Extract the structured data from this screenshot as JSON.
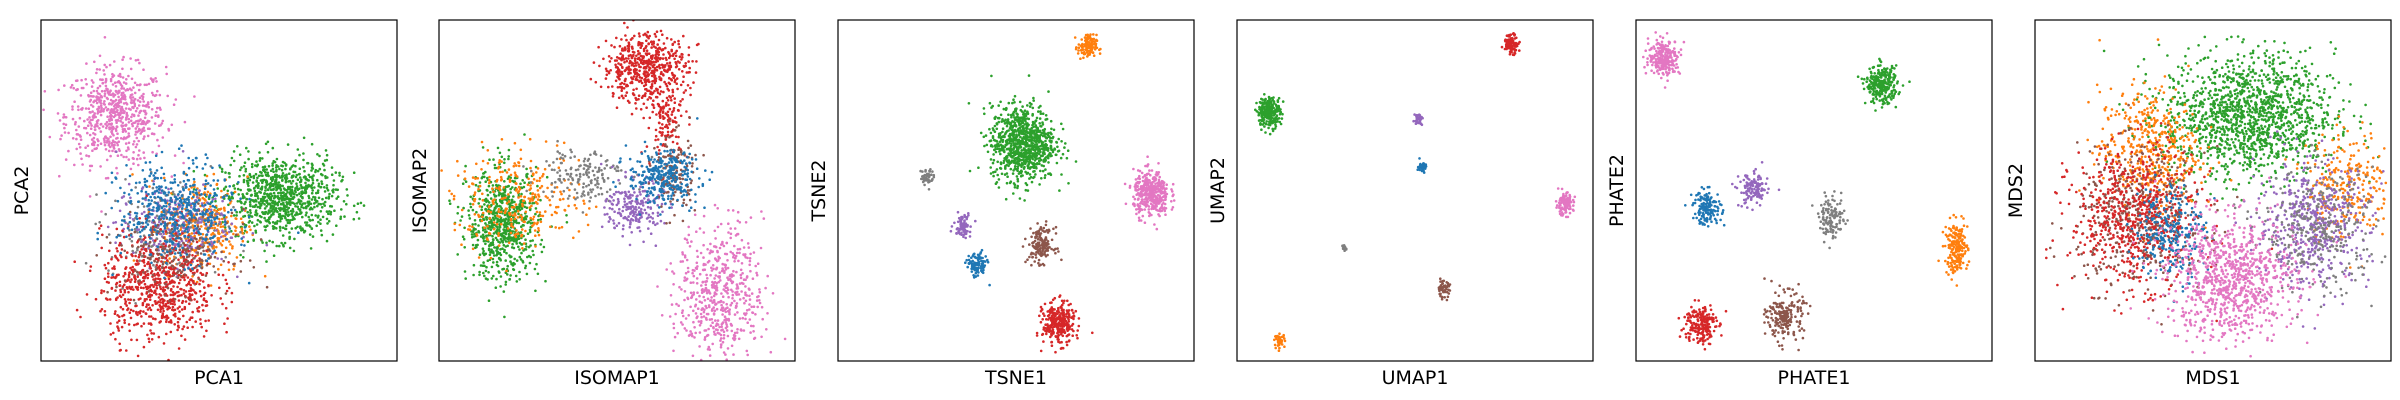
{
  "colors": {
    "blue": "#1f77b4",
    "orange": "#ff7f0e",
    "green": "#2ca02c",
    "red": "#d62728",
    "purple": "#9467bd",
    "brown": "#8c564b",
    "pink": "#e377c2",
    "gray": "#7f7f7f"
  },
  "chart_data": [
    {
      "type": "scatter",
      "xlabel": "PCA1",
      "ylabel": "PCA2",
      "xlim": [
        0,
        100
      ],
      "ylim": [
        0,
        100
      ],
      "ticks": "none",
      "clusters": [
        {
          "color": "pink",
          "cx": 21,
          "cy": 72,
          "sx": 7,
          "sy": 7,
          "n": 650
        },
        {
          "color": "green",
          "cx": 67,
          "cy": 48,
          "sx": 8,
          "sy": 6,
          "n": 900
        },
        {
          "color": "orange",
          "cx": 46,
          "cy": 40,
          "sx": 6,
          "sy": 7,
          "n": 300
        },
        {
          "color": "gray",
          "cx": 35,
          "cy": 38,
          "sx": 8,
          "sy": 7,
          "n": 220
        },
        {
          "color": "purple",
          "cx": 37,
          "cy": 40,
          "sx": 8,
          "sy": 6,
          "n": 250
        },
        {
          "color": "red",
          "cx": 33,
          "cy": 22,
          "sx": 8,
          "sy": 8,
          "n": 700
        },
        {
          "color": "brown",
          "cx": 38,
          "cy": 32,
          "sx": 8,
          "sy": 6,
          "n": 200
        },
        {
          "color": "blue",
          "cx": 38,
          "cy": 44,
          "sx": 8,
          "sy": 7,
          "n": 450
        }
      ]
    },
    {
      "type": "scatter",
      "xlabel": "ISOMAP1",
      "ylabel": "ISOMAP2",
      "xlim": [
        0,
        100
      ],
      "ylim": [
        0,
        100
      ],
      "ticks": "none",
      "clusters": [
        {
          "color": "red",
          "cx": 58,
          "cy": 86,
          "sx": 6,
          "sy": 5,
          "n": 550
        },
        {
          "color": "red",
          "cx": 64,
          "cy": 70,
          "sx": 3,
          "sy": 5,
          "n": 120
        },
        {
          "color": "green",
          "cx": 18,
          "cy": 40,
          "sx": 5,
          "sy": 8,
          "n": 700
        },
        {
          "color": "orange",
          "cx": 22,
          "cy": 47,
          "sx": 9,
          "sy": 7,
          "n": 300
        },
        {
          "color": "gray",
          "cx": 40,
          "cy": 55,
          "sx": 6,
          "sy": 4,
          "n": 160
        },
        {
          "color": "purple",
          "cx": 55,
          "cy": 45,
          "sx": 4,
          "sy": 4,
          "n": 220
        },
        {
          "color": "brown",
          "cx": 66,
          "cy": 55,
          "sx": 3,
          "sy": 6,
          "n": 140
        },
        {
          "color": "blue",
          "cx": 63,
          "cy": 54,
          "sx": 5,
          "sy": 4,
          "n": 300
        },
        {
          "color": "pink",
          "cx": 79,
          "cy": 20,
          "sx": 6,
          "sy": 10,
          "n": 550
        }
      ]
    },
    {
      "type": "scatter",
      "xlabel": "TSNE1",
      "ylabel": "TSNE2",
      "xlim": [
        0,
        100
      ],
      "ylim": [
        0,
        100
      ],
      "ticks": "none",
      "clusters": [
        {
          "color": "orange",
          "cx": 70,
          "cy": 92,
          "sx": 1.3,
          "sy": 1.8,
          "n": 120
        },
        {
          "color": "green",
          "cx": 52,
          "cy": 64,
          "sx": 4.5,
          "sy": 5.5,
          "n": 900
        },
        {
          "color": "gray",
          "cx": 25,
          "cy": 54,
          "sx": 0.9,
          "sy": 1.2,
          "n": 50
        },
        {
          "color": "pink",
          "cx": 88,
          "cy": 49,
          "sx": 2.5,
          "sy": 3.3,
          "n": 400
        },
        {
          "color": "purple",
          "cx": 35,
          "cy": 40,
          "sx": 1.2,
          "sy": 1.7,
          "n": 80
        },
        {
          "color": "brown",
          "cx": 57,
          "cy": 34,
          "sx": 1.8,
          "sy": 2.5,
          "n": 160
        },
        {
          "color": "blue",
          "cx": 39,
          "cy": 28,
          "sx": 1.4,
          "sy": 1.9,
          "n": 100
        },
        {
          "color": "red",
          "cx": 62,
          "cy": 11,
          "sx": 2.2,
          "sy": 3.0,
          "n": 300
        }
      ]
    },
    {
      "type": "scatter",
      "xlabel": "UMAP1",
      "ylabel": "UMAP2",
      "xlim": [
        0,
        100
      ],
      "ylim": [
        0,
        100
      ],
      "ticks": "none",
      "clusters": [
        {
          "color": "red",
          "cx": 77,
          "cy": 93,
          "sx": 1.0,
          "sy": 1.4,
          "n": 110
        },
        {
          "color": "green",
          "cx": 9,
          "cy": 73,
          "sx": 1.6,
          "sy": 2.2,
          "n": 250
        },
        {
          "color": "purple",
          "cx": 51,
          "cy": 71,
          "sx": 0.6,
          "sy": 0.8,
          "n": 40
        },
        {
          "color": "blue",
          "cx": 52,
          "cy": 57,
          "sx": 0.6,
          "sy": 0.8,
          "n": 40
        },
        {
          "color": "pink",
          "cx": 92,
          "cy": 46,
          "sx": 1.2,
          "sy": 1.6,
          "n": 120
        },
        {
          "color": "gray",
          "cx": 30,
          "cy": 33,
          "sx": 0.4,
          "sy": 0.5,
          "n": 14
        },
        {
          "color": "brown",
          "cx": 58,
          "cy": 21,
          "sx": 0.9,
          "sy": 1.2,
          "n": 60
        },
        {
          "color": "orange",
          "cx": 12,
          "cy": 6,
          "sx": 0.7,
          "sy": 0.9,
          "n": 45
        }
      ]
    },
    {
      "type": "scatter",
      "xlabel": "PHATE1",
      "ylabel": "PHATE2",
      "xlim": [
        0,
        100
      ],
      "ylim": [
        0,
        100
      ],
      "ticks": "none",
      "clusters": [
        {
          "color": "pink",
          "cx": 8,
          "cy": 89,
          "sx": 2.2,
          "sy": 2.6,
          "n": 250
        },
        {
          "color": "green",
          "cx": 69,
          "cy": 81,
          "sx": 2.2,
          "sy": 2.7,
          "n": 280
        },
        {
          "color": "purple",
          "cx": 33,
          "cy": 50,
          "sx": 2.0,
          "sy": 2.5,
          "n": 130
        },
        {
          "color": "blue",
          "cx": 20,
          "cy": 45,
          "sx": 2.0,
          "sy": 2.5,
          "n": 150
        },
        {
          "color": "gray",
          "cx": 55,
          "cy": 42,
          "sx": 1.8,
          "sy": 3.0,
          "n": 120
        },
        {
          "color": "orange",
          "cx": 90,
          "cy": 33,
          "sx": 1.6,
          "sy": 3.8,
          "n": 200
        },
        {
          "color": "red",
          "cx": 18,
          "cy": 11,
          "sx": 2.2,
          "sy": 3.0,
          "n": 200
        },
        {
          "color": "brown",
          "cx": 42,
          "cy": 13,
          "sx": 2.5,
          "sy": 3.5,
          "n": 200
        }
      ]
    },
    {
      "type": "scatter",
      "xlabel": "MDS1",
      "ylabel": "MDS2",
      "xlim": [
        0,
        100
      ],
      "ylim": [
        0,
        100
      ],
      "ticks": "none",
      "clusters": [
        {
          "color": "green",
          "cx": 60,
          "cy": 72,
          "sx": 12,
          "sy": 9,
          "n": 1400
        },
        {
          "color": "orange",
          "cx": 32,
          "cy": 62,
          "sx": 7,
          "sy": 9,
          "n": 450
        },
        {
          "color": "orange",
          "cx": 88,
          "cy": 52,
          "sx": 6,
          "sy": 8,
          "n": 250
        },
        {
          "color": "brown",
          "cx": 30,
          "cy": 42,
          "sx": 9,
          "sy": 10,
          "n": 450
        },
        {
          "color": "red",
          "cx": 28,
          "cy": 42,
          "sx": 9,
          "sy": 10,
          "n": 650
        },
        {
          "color": "blue",
          "cx": 38,
          "cy": 38,
          "sx": 5,
          "sy": 7,
          "n": 250
        },
        {
          "color": "purple",
          "cx": 78,
          "cy": 40,
          "sx": 8,
          "sy": 9,
          "n": 500
        },
        {
          "color": "gray",
          "cx": 80,
          "cy": 38,
          "sx": 8,
          "sy": 9,
          "n": 300
        },
        {
          "color": "pink",
          "cx": 55,
          "cy": 24,
          "sx": 9,
          "sy": 9,
          "n": 900
        }
      ]
    }
  ]
}
